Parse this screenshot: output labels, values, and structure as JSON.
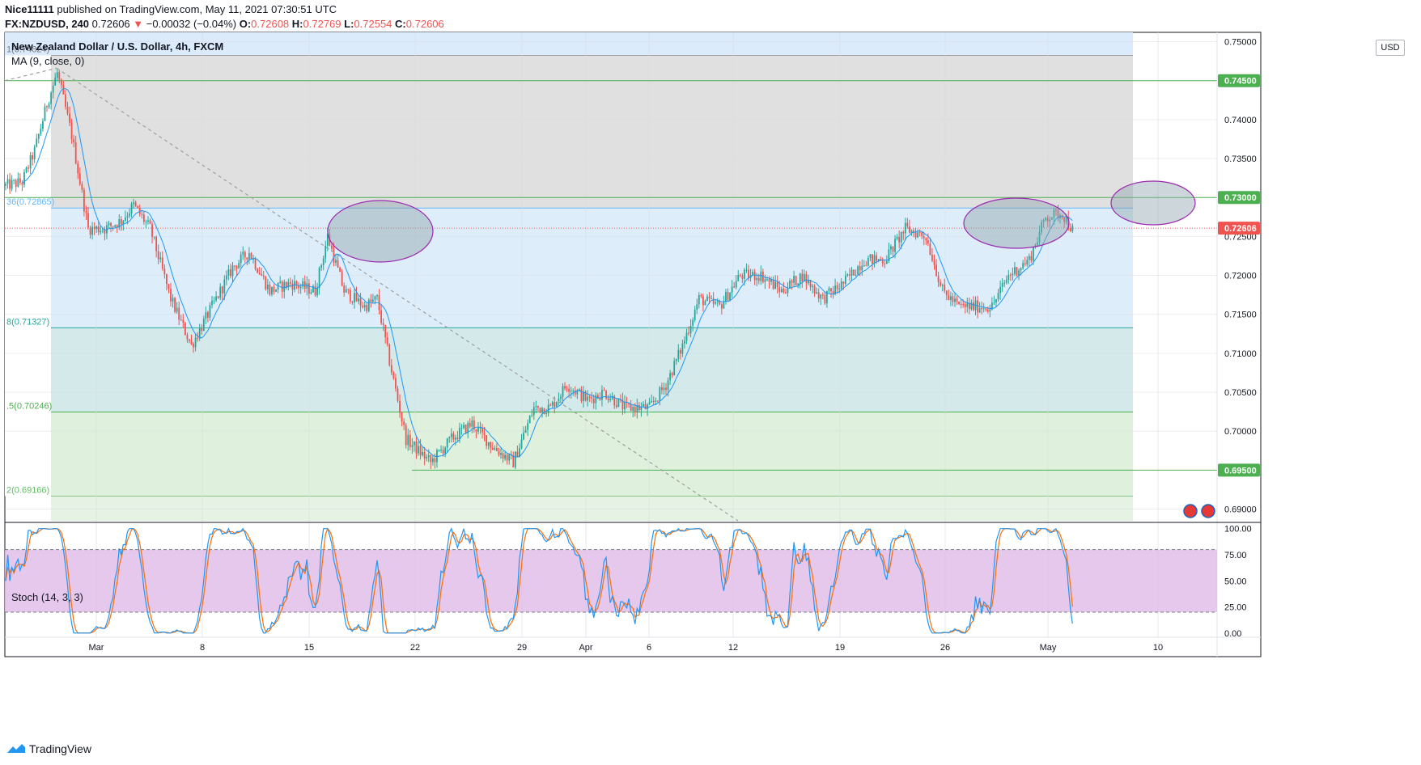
{
  "header": {
    "publisher": "Nice11111",
    "published_text": "published on TradingView.com, May 11, 2021 07:30:51 UTC",
    "symbol": "FX:NZDUSD, 240",
    "last": "0.72606",
    "change_arrow": "▼",
    "change": "−0.00032 (−0.04%)",
    "o_label": "O:",
    "o_val": "0.72608",
    "h_label": "H:",
    "h_val": "0.72769",
    "l_label": "L:",
    "l_val": "0.72554",
    "c_label": "C:",
    "c_val": "0.72606"
  },
  "chart_title": "New Zealand Dollar / U.S. Dollar, 4h, FXCM",
  "ma_title": "MA (9, close, 0)",
  "stoch_title": "Stoch (14, 3, 3)",
  "currency": "USD",
  "footer_brand": "TradingView",
  "colors": {
    "up": "#26a69a",
    "down": "#ef5350",
    "ma": "#2196f3",
    "stoch_k": "#2196f3",
    "stoch_d": "#ff6d00",
    "hline": "#4caf50",
    "stoch_band": "#e1bee7",
    "ellipse_border": "#9c27b0"
  },
  "chart_data": [
    {
      "type": "candlestick",
      "title": "New Zealand Dollar / U.S. Dollar, 4h, FXCM",
      "x_tick_labels": [
        "Mar",
        "8",
        "15",
        "22",
        "29",
        "Apr",
        "6",
        "12",
        "19",
        "26",
        "May",
        "10"
      ],
      "y_tick_labels": [
        "0.75000",
        "0.74000",
        "0.73500",
        "0.72500",
        "0.72000",
        "0.71500",
        "0.71000",
        "0.70500",
        "0.70000",
        "0.69000"
      ],
      "ylim": [
        0.6885,
        0.7512
      ],
      "price_labels": [
        {
          "value": 0.745,
          "text": "0.74500",
          "color": "#4caf50"
        },
        {
          "value": 0.73,
          "text": "0.73000",
          "color": "#4caf50"
        },
        {
          "value": 0.72606,
          "text": "0.72606",
          "color": "#ef5350"
        },
        {
          "value": 0.695,
          "text": "0.69500",
          "color": "#4caf50"
        }
      ],
      "fib_levels": [
        {
          "label": "1(0.74824)",
          "value": 0.74824
        },
        {
          "label": "36(0.72865)",
          "value": 0.72865
        },
        {
          "label": "8(0.71327)",
          "value": 0.71327
        },
        {
          "label": ".5(0.70246)",
          "value": 0.70246
        },
        {
          "label": "2(0.69166)",
          "value": 0.69166
        }
      ],
      "horizontal_levels": [
        0.745,
        0.73,
        0.695
      ],
      "waypoints": [
        [
          0,
          0.7315
        ],
        [
          8,
          0.732
        ],
        [
          14,
          0.736
        ],
        [
          20,
          0.742
        ],
        [
          25,
          0.746
        ],
        [
          32,
          0.738
        ],
        [
          40,
          0.726
        ],
        [
          48,
          0.726
        ],
        [
          56,
          0.727
        ],
        [
          62,
          0.729
        ],
        [
          70,
          0.726
        ],
        [
          80,
          0.717
        ],
        [
          90,
          0.711
        ],
        [
          98,
          0.715
        ],
        [
          110,
          0.721
        ],
        [
          118,
          0.723
        ],
        [
          128,
          0.718
        ],
        [
          138,
          0.719
        ],
        [
          150,
          0.718
        ],
        [
          156,
          0.725
        ],
        [
          164,
          0.718
        ],
        [
          174,
          0.716
        ],
        [
          180,
          0.717
        ],
        [
          186,
          0.709
        ],
        [
          194,
          0.699
        ],
        [
          206,
          0.696
        ],
        [
          216,
          0.699
        ],
        [
          226,
          0.701
        ],
        [
          236,
          0.698
        ],
        [
          246,
          0.696
        ],
        [
          256,
          0.703
        ],
        [
          264,
          0.703
        ],
        [
          272,
          0.706
        ],
        [
          282,
          0.704
        ],
        [
          290,
          0.705
        ],
        [
          300,
          0.703
        ],
        [
          312,
          0.703
        ],
        [
          320,
          0.706
        ],
        [
          328,
          0.711
        ],
        [
          336,
          0.717
        ],
        [
          346,
          0.716
        ],
        [
          356,
          0.72
        ],
        [
          366,
          0.72
        ],
        [
          376,
          0.718
        ],
        [
          386,
          0.72
        ],
        [
          396,
          0.717
        ],
        [
          406,
          0.719
        ],
        [
          416,
          0.722
        ],
        [
          426,
          0.722
        ],
        [
          436,
          0.726
        ],
        [
          446,
          0.725
        ],
        [
          454,
          0.718
        ],
        [
          462,
          0.716
        ],
        [
          470,
          0.716
        ],
        [
          478,
          0.716
        ],
        [
          486,
          0.72
        ],
        [
          496,
          0.722
        ],
        [
          504,
          0.7275
        ],
        [
          512,
          0.728
        ],
        [
          517,
          0.7258
        ]
      ],
      "stoch_levels": {
        "upper": 80,
        "lower": 20
      },
      "stoch_y_tick_labels": [
        "100.00",
        "75.00",
        "50.00",
        "25.00",
        "0.00"
      ],
      "stoch_ylim": [
        -4,
        106
      ]
    }
  ]
}
